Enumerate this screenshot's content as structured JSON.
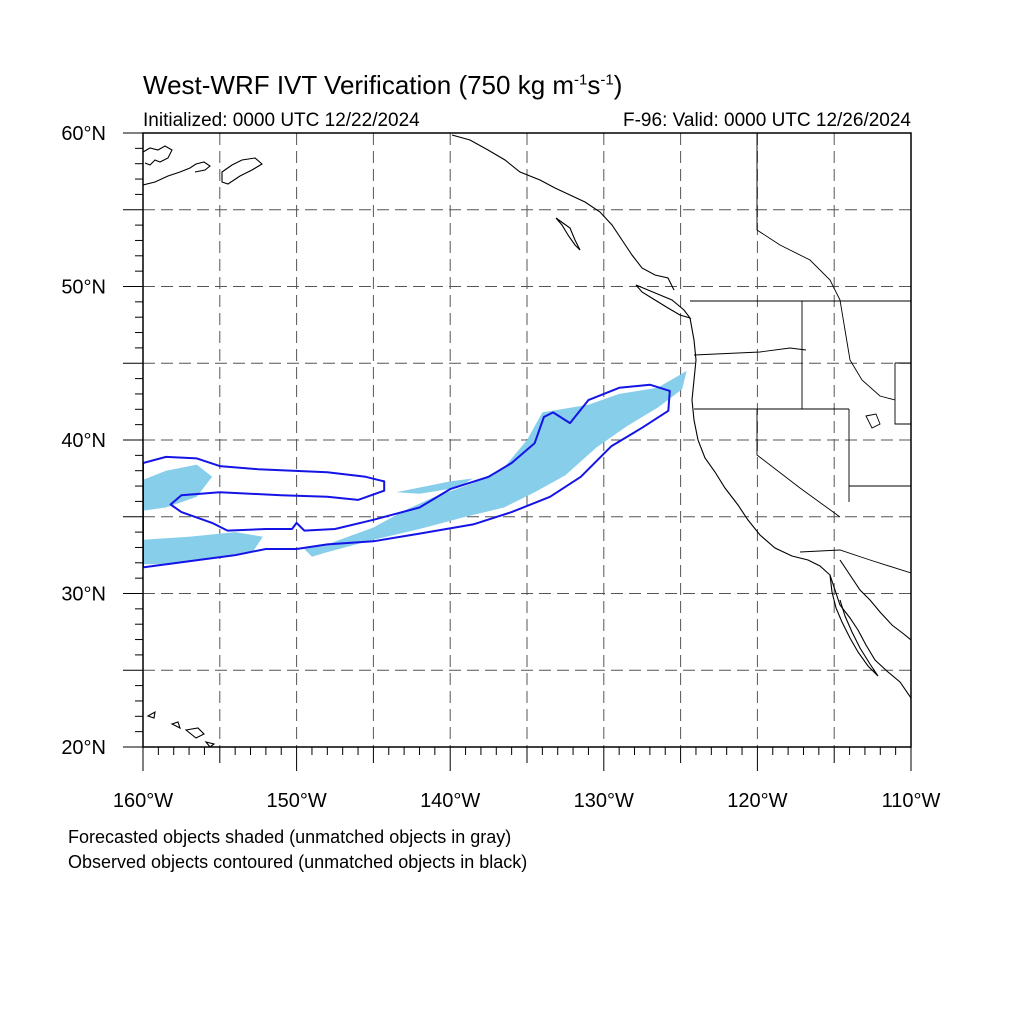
{
  "title": {
    "main": "West-WRF IVT Verification (750 kg m",
    "sup1": "-1",
    "mid": "s",
    "sup2": "-1",
    "end": ")"
  },
  "init_text": "Initialized: 0000 UTC 12/22/2024",
  "valid_text": "F-96: Valid: 0000 UTC 12/26/2024",
  "axes": {
    "lon_range": [
      -160,
      -110
    ],
    "lat_range": [
      20,
      60
    ],
    "lon_ticks": [
      {
        "value": -160,
        "label": "160°W"
      },
      {
        "value": -150,
        "label": "150°W"
      },
      {
        "value": -140,
        "label": "140°W"
      },
      {
        "value": -130,
        "label": "130°W"
      },
      {
        "value": -120,
        "label": "120°W"
      },
      {
        "value": -110,
        "label": "110°W"
      }
    ],
    "lat_ticks": [
      {
        "value": 60,
        "label": "60°N"
      },
      {
        "value": 50,
        "label": "50°N"
      },
      {
        "value": 40,
        "label": "40°N"
      },
      {
        "value": 30,
        "label": "30°N"
      },
      {
        "value": 20,
        "label": "20°N"
      }
    ],
    "grid_spacing_deg": 5,
    "grid_style": "dashed"
  },
  "colors": {
    "forecast_fill": "#87ceeb",
    "observed_contour": "#1414e6",
    "coastline": "#000000",
    "grid": "#555555"
  },
  "legend": {
    "line1": "Forecasted objects shaded (unmatched objects in gray)",
    "line2": "Observed objects contoured (unmatched objects in black)"
  },
  "chart_data": {
    "type": "map",
    "forecast_objects": [
      {
        "points": [
          [
            -160,
            37.4
          ],
          [
            -158.5,
            38
          ],
          [
            -156.5,
            38.4
          ],
          [
            -155.5,
            37.6
          ],
          [
            -156.5,
            36.3
          ],
          [
            -158.5,
            35.6
          ],
          [
            -160,
            35.4
          ]
        ]
      },
      {
        "points": [
          [
            -160,
            33.5
          ],
          [
            -157,
            33.7
          ],
          [
            -154,
            34
          ],
          [
            -152.2,
            33.7
          ],
          [
            -152.8,
            32.8
          ],
          [
            -156,
            32.2
          ],
          [
            -158,
            31.9
          ],
          [
            -160,
            31.9
          ]
        ]
      },
      {
        "points": [
          [
            -148,
            33.2
          ],
          [
            -145,
            34.3
          ],
          [
            -143,
            35.4
          ],
          [
            -141,
            36.3
          ],
          [
            -138.5,
            37.2
          ],
          [
            -136.5,
            38.2
          ],
          [
            -135,
            40
          ],
          [
            -134,
            41.8
          ],
          [
            -131,
            42.3
          ],
          [
            -129,
            43
          ],
          [
            -126.5,
            43.4
          ],
          [
            -124.6,
            44.5
          ],
          [
            -124.9,
            43.3
          ],
          [
            -126.5,
            42.1
          ],
          [
            -128.5,
            40.9
          ],
          [
            -130.5,
            39.5
          ],
          [
            -132.5,
            37.7
          ],
          [
            -134.5,
            36.6
          ],
          [
            -136.5,
            35.6
          ],
          [
            -139,
            35
          ],
          [
            -142,
            34.2
          ],
          [
            -145,
            33.5
          ],
          [
            -148,
            32.7
          ],
          [
            -149,
            32.4
          ],
          [
            -149.5,
            32.9
          ]
        ]
      },
      {
        "points": [
          [
            -143.5,
            36.6
          ],
          [
            -140,
            37.3
          ],
          [
            -138.5,
            37.5
          ],
          [
            -139.5,
            36.9
          ],
          [
            -142,
            36.5
          ]
        ]
      }
    ],
    "observed_objects": [
      {
        "points": [
          [
            -160,
            38.5
          ],
          [
            -158.5,
            38.9
          ],
          [
            -156.5,
            38.8
          ],
          [
            -155,
            38.3
          ],
          [
            -152.5,
            38.1
          ],
          [
            -148,
            37.9
          ],
          [
            -145.5,
            37.6
          ],
          [
            -144.3,
            37.3
          ],
          [
            -144.3,
            36.7
          ],
          [
            -146,
            36.1
          ],
          [
            -148,
            36.3
          ],
          [
            -151,
            36.4
          ],
          [
            -155,
            36.6
          ],
          [
            -157.5,
            36.4
          ],
          [
            -158.2,
            35.8
          ],
          [
            -157.5,
            35.3
          ],
          [
            -155.5,
            34.6
          ],
          [
            -154.5,
            34.1
          ],
          [
            -152,
            34.2
          ],
          [
            -150.3,
            34.2
          ],
          [
            -150,
            34.6
          ],
          [
            -149.5,
            34.1
          ],
          [
            -147.5,
            34.2
          ],
          [
            -145,
            34.8
          ],
          [
            -142,
            35.6
          ],
          [
            -140,
            36.8
          ],
          [
            -137.5,
            37.6
          ],
          [
            -136,
            38.5
          ],
          [
            -134.5,
            39.8
          ],
          [
            -133.9,
            41.5
          ],
          [
            -133.3,
            41.8
          ],
          [
            -132.2,
            41.1
          ],
          [
            -131,
            42.6
          ],
          [
            -129,
            43.4
          ],
          [
            -127,
            43.6
          ],
          [
            -125.7,
            43.2
          ],
          [
            -125.8,
            41.9
          ],
          [
            -127.5,
            40.8
          ],
          [
            -129.5,
            39.6
          ],
          [
            -131.5,
            37.6
          ],
          [
            -133.5,
            36.3
          ],
          [
            -136,
            35.3
          ],
          [
            -138.5,
            34.5
          ],
          [
            -142,
            33.9
          ],
          [
            -145,
            33.4
          ],
          [
            -148,
            33.2
          ],
          [
            -150,
            32.9
          ],
          [
            -152,
            32.9
          ],
          [
            -154,
            32.5
          ],
          [
            -157,
            32.1
          ],
          [
            -160,
            31.7
          ]
        ]
      }
    ]
  }
}
